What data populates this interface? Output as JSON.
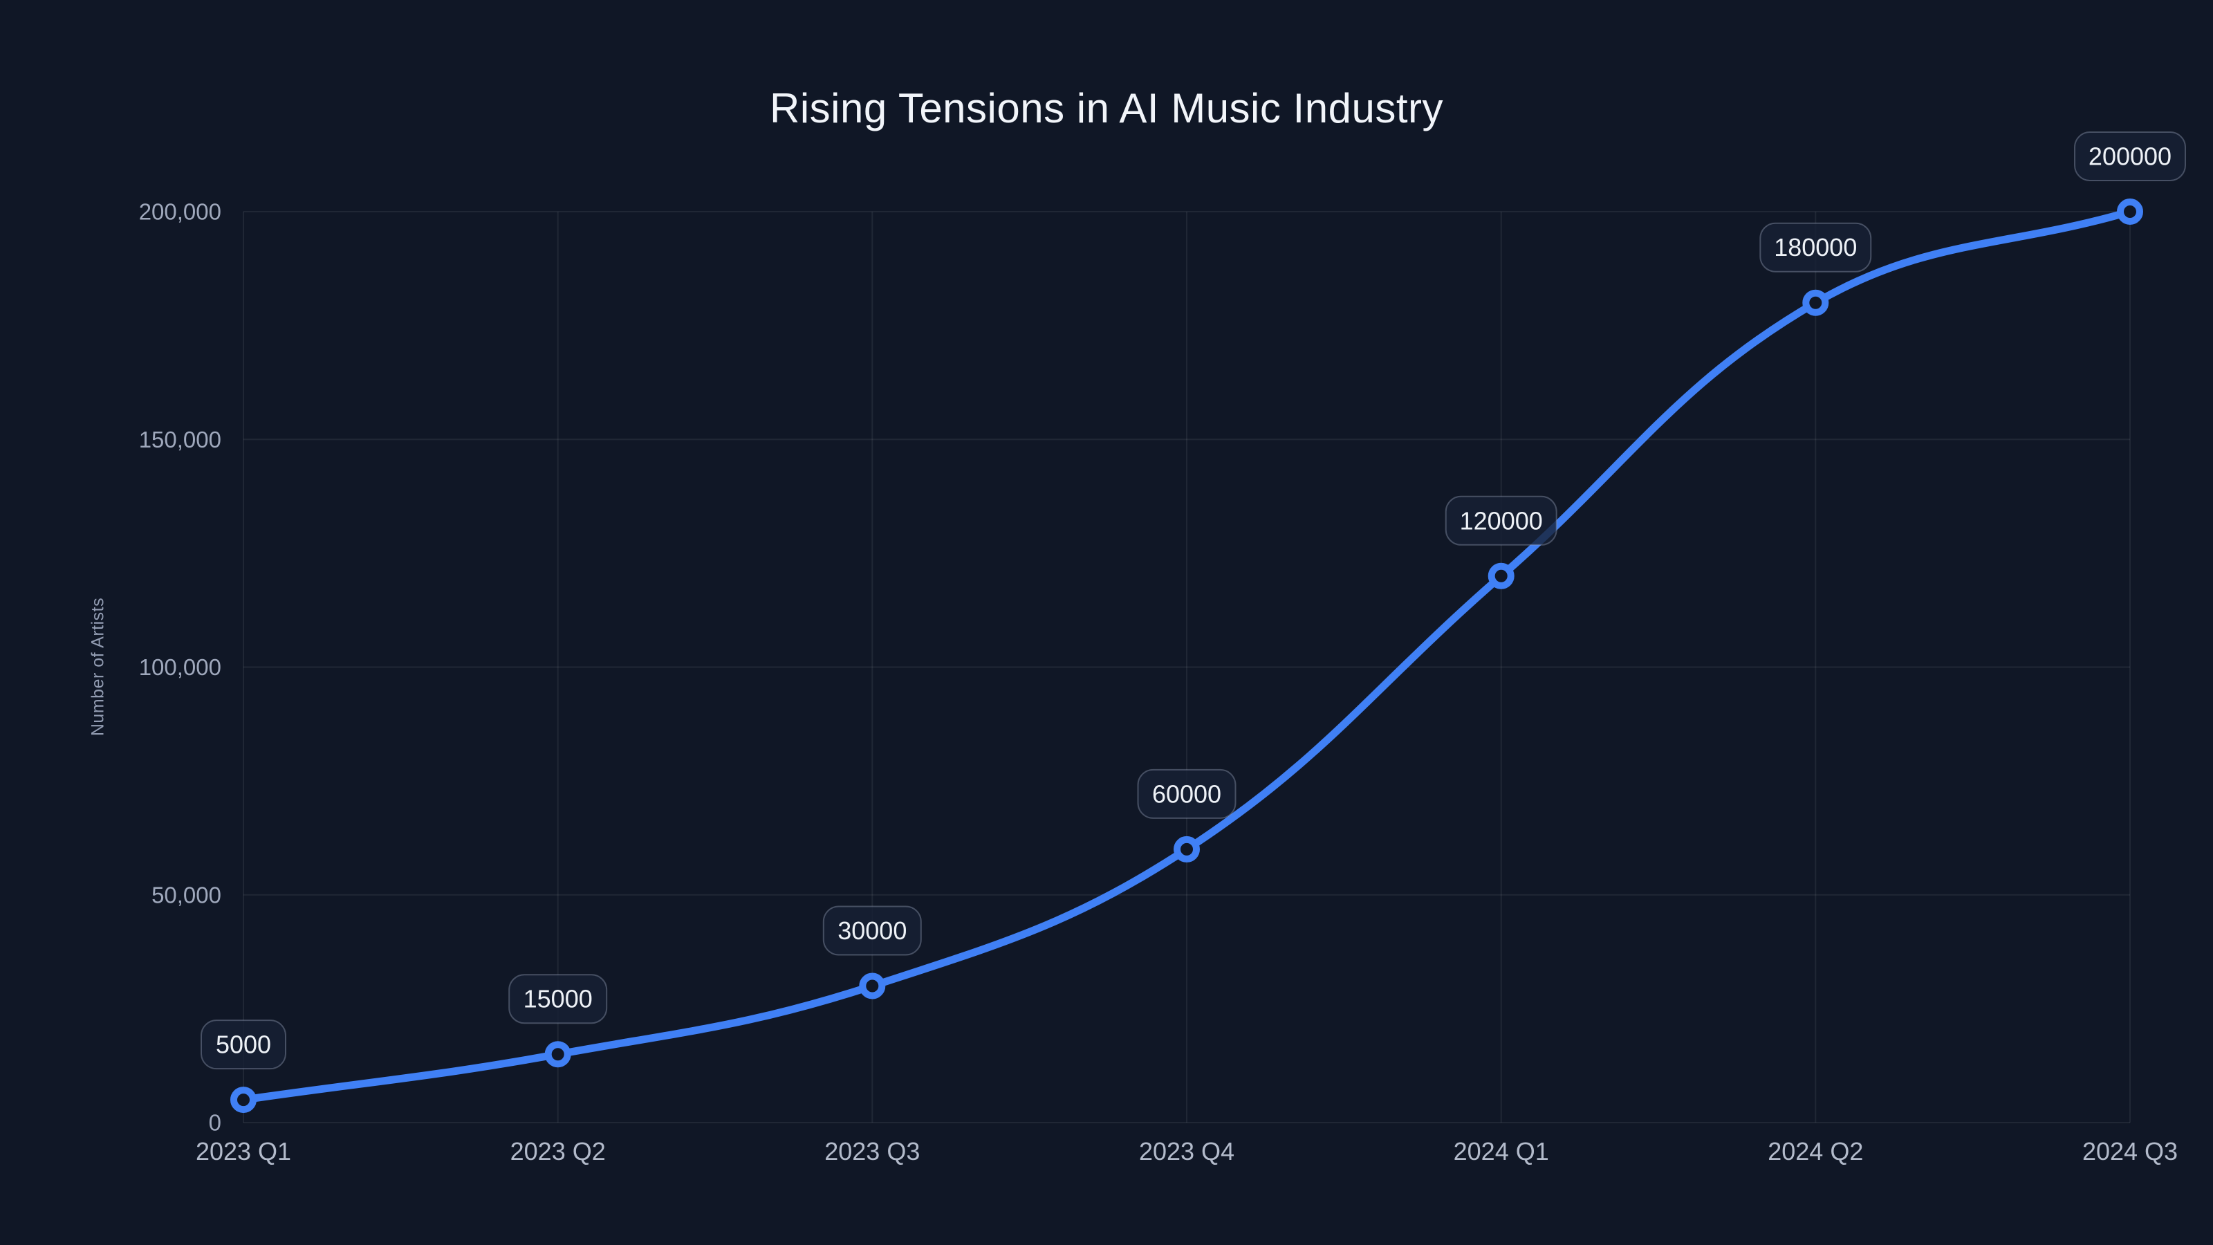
{
  "chart_data": {
    "type": "line",
    "title": "Rising Tensions in AI Music Industry",
    "xlabel": "",
    "ylabel": "Number of Artists",
    "categories": [
      "2023 Q1",
      "2023 Q2",
      "2023 Q3",
      "2023 Q4",
      "2024 Q1",
      "2024 Q2",
      "2024 Q3"
    ],
    "series": [
      {
        "name": "Number of Artists",
        "values": [
          5000,
          15000,
          30000,
          60000,
          120000,
          180000,
          200000
        ]
      }
    ],
    "point_labels": [
      "5000",
      "15000",
      "30000",
      "60000",
      "120000",
      "180000",
      "200000"
    ],
    "y_ticks": [
      {
        "value": 0,
        "label": "0"
      },
      {
        "value": 50000,
        "label": "50,000"
      },
      {
        "value": 100000,
        "label": "100,000"
      },
      {
        "value": 150000,
        "label": "150,000"
      },
      {
        "value": 200000,
        "label": "200,000"
      }
    ],
    "ylim": [
      0,
      200000
    ],
    "grid": true,
    "legend": false,
    "curve": "spline",
    "colors": {
      "background": "#101726",
      "line": "#4080f5",
      "grid": "rgba(255,255,255,0.07)",
      "y_tick_text": "#9fa8bc",
      "x_tick_text": "#b3bbcb",
      "title_text": "#f2f5fa",
      "axis_title_text": "#939db3",
      "marker_fill": "#101726",
      "label_box_fill": "rgba(23,32,52,0.8)",
      "label_box_border": "rgba(154,166,188,0.38)",
      "label_text": "#eef2f7"
    }
  }
}
